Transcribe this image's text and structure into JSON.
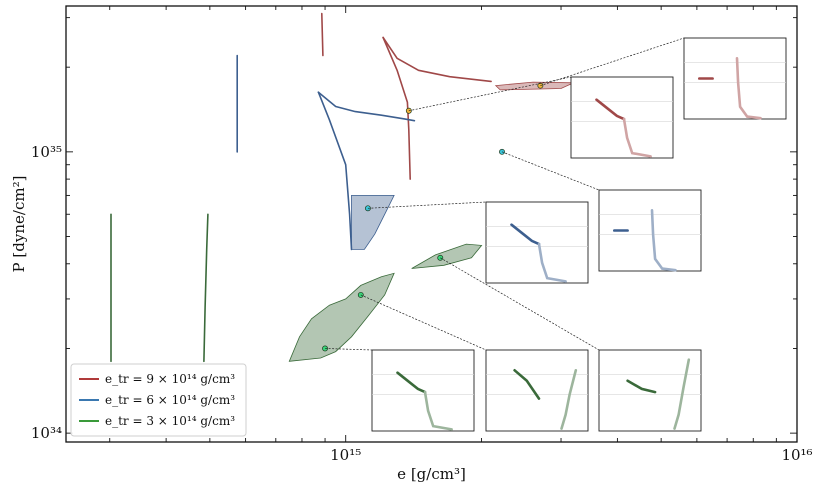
{
  "chart_data": {
    "type": "scatter",
    "xlabel": "e [g/cm³]",
    "ylabel": "P [dyne/cm²]",
    "x_scale": "log",
    "y_scale": "log",
    "xlim": [
      240000000000000.0,
      1e+16
    ],
    "ylim": [
      9.3e+33,
      3.3e+35
    ],
    "x_ticks": [
      {
        "value": 1000000000000000.0,
        "label": "10¹⁵"
      },
      {
        "value": 1e+16,
        "label": "10¹⁶"
      }
    ],
    "y_ticks": [
      {
        "value": 1e+34,
        "label": "10³⁴"
      },
      {
        "value": 1e+35,
        "label": "10³⁵"
      }
    ],
    "legend": {
      "placement": "lower-left",
      "entries": [
        {
          "label": "e_tr = 9 × 10¹⁴ g/cm³",
          "color": "#b03a3a"
        },
        {
          "label": "e_tr = 6 × 10¹⁴ g/cm³",
          "color": "#3a78b0"
        },
        {
          "label": "e_tr = 3 × 10¹⁴ g/cm³",
          "color": "#3a9a3a"
        }
      ]
    },
    "series": [
      {
        "color": "#a04848",
        "segments": [
          [
            [
              1210000000000000.0,
              2.55e+35
            ],
            [
              1300000000000000.0,
              2.15e+35
            ],
            [
              1450000000000000.0,
              1.95e+35
            ],
            [
              1700000000000000.0,
              1.85e+35
            ],
            [
              2100000000000000.0,
              1.78e+35
            ]
          ],
          [
            [
              1210000000000000.0,
              2.55e+35
            ],
            [
              1300000000000000.0,
              1.95e+35
            ],
            [
              1370000000000000.0,
              1.5e+35
            ],
            [
              1380000000000000.0,
              1.2e+35
            ],
            [
              1390000000000000.0,
              8e+34
            ]
          ],
          [
            [
              885000000000000.0,
              3.1e+35
            ],
            [
              890000000000000.0,
              2.2e+35
            ]
          ]
        ],
        "regions": [
          [
            [
              2150000000000000.0,
              1.72e+35
            ],
            [
              2600000000000000.0,
              1.77e+35
            ],
            [
              3200000000000000.0,
              1.76e+35
            ],
            [
              3000000000000000.0,
              1.68e+35
            ],
            [
              2200000000000000.0,
              1.66e+35
            ]
          ]
        ],
        "points": [
          [
            2700000000000000.0,
            1.72e+35
          ],
          [
            1380000000000000.0,
            1.4e+35
          ]
        ]
      },
      {
        "color": "#3d5f8f",
        "segments": [
          [
            [
              870000000000000.0,
              1.63e+35
            ],
            [
              950000000000000.0,
              1.45e+35
            ],
            [
              1050000000000000.0,
              1.39e+35
            ],
            [
              1200000000000000.0,
              1.35e+35
            ],
            [
              1350000000000000.0,
              1.31e+35
            ],
            [
              1420000000000000.0,
              1.29e+35
            ]
          ],
          [
            [
              870000000000000.0,
              1.63e+35
            ],
            [
              920000000000000.0,
              1.3e+35
            ],
            [
              1000000000000000.0,
              9e+34
            ],
            [
              1020000000000000.0,
              6e+34
            ],
            [
              1030000000000000.0,
              4.5e+34
            ]
          ],
          [
            [
              575000000000000.0,
              2.2e+35
            ],
            [
              575000000000000.0,
              1e+35
            ]
          ]
        ],
        "regions": [
          [
            [
              1030000000000000.0,
              7e+34
            ],
            [
              1280000000000000.0,
              7e+34
            ],
            [
              1220000000000000.0,
              6e+34
            ],
            [
              1160000000000000.0,
              5.1e+34
            ],
            [
              1100000000000000.0,
              4.5e+34
            ],
            [
              1030000000000000.0,
              4.5e+34
            ]
          ]
        ],
        "points": [
          [
            1120000000000000.0,
            6.3e+34
          ],
          [
            2220000000000000.0,
            1e+35
          ]
        ]
      },
      {
        "color": "#3a6a3a",
        "segments": [
          [
            [
              485000000000000.0,
              1.8e+34
            ],
            [
              488000000000000.0,
              2.8e+34
            ],
            [
              492000000000000.0,
              4.5e+34
            ],
            [
              495000000000000.0,
              6e+34
            ]
          ],
          [
            [
              302000000000000.0,
              6e+34
            ],
            [
              302000000000000.0,
              1.8e+34
            ]
          ]
        ],
        "regions": [
          [
            [
              1580000000000000.0,
              4.3e+34
            ],
            [
              1850000000000000.0,
              4.7e+34
            ],
            [
              2000000000000000.0,
              4.65e+34
            ],
            [
              1900000000000000.0,
              4.2e+34
            ],
            [
              1650000000000000.0,
              3.95e+34
            ],
            [
              1400000000000000.0,
              3.85e+34
            ]
          ],
          [
            [
              750000000000000.0,
              1.8e+34
            ],
            [
              880000000000000.0,
              1.85e+34
            ],
            [
              950000000000000.0,
              1.95e+34
            ],
            [
              1030000000000000.0,
              2.2e+34
            ],
            [
              1120000000000000.0,
              2.6e+34
            ],
            [
              1220000000000000.0,
              3.1e+34
            ],
            [
              1280000000000000.0,
              3.7e+34
            ],
            [
              1200000000000000.0,
              3.6e+34
            ],
            [
              1080000000000000.0,
              3.35e+34
            ],
            [
              1000000000000000.0,
              3e+34
            ],
            [
              920000000000000.0,
              2.85e+34
            ],
            [
              840000000000000.0,
              2.55e+34
            ],
            [
              790000000000000.0,
              2.2e+34
            ]
          ]
        ],
        "points": [
          [
            1080000000000000.0,
            3.1e+34
          ],
          [
            1620000000000000.0,
            4.2e+34
          ],
          [
            900000000000000.0,
            2e+34
          ]
        ]
      }
    ]
  }
}
